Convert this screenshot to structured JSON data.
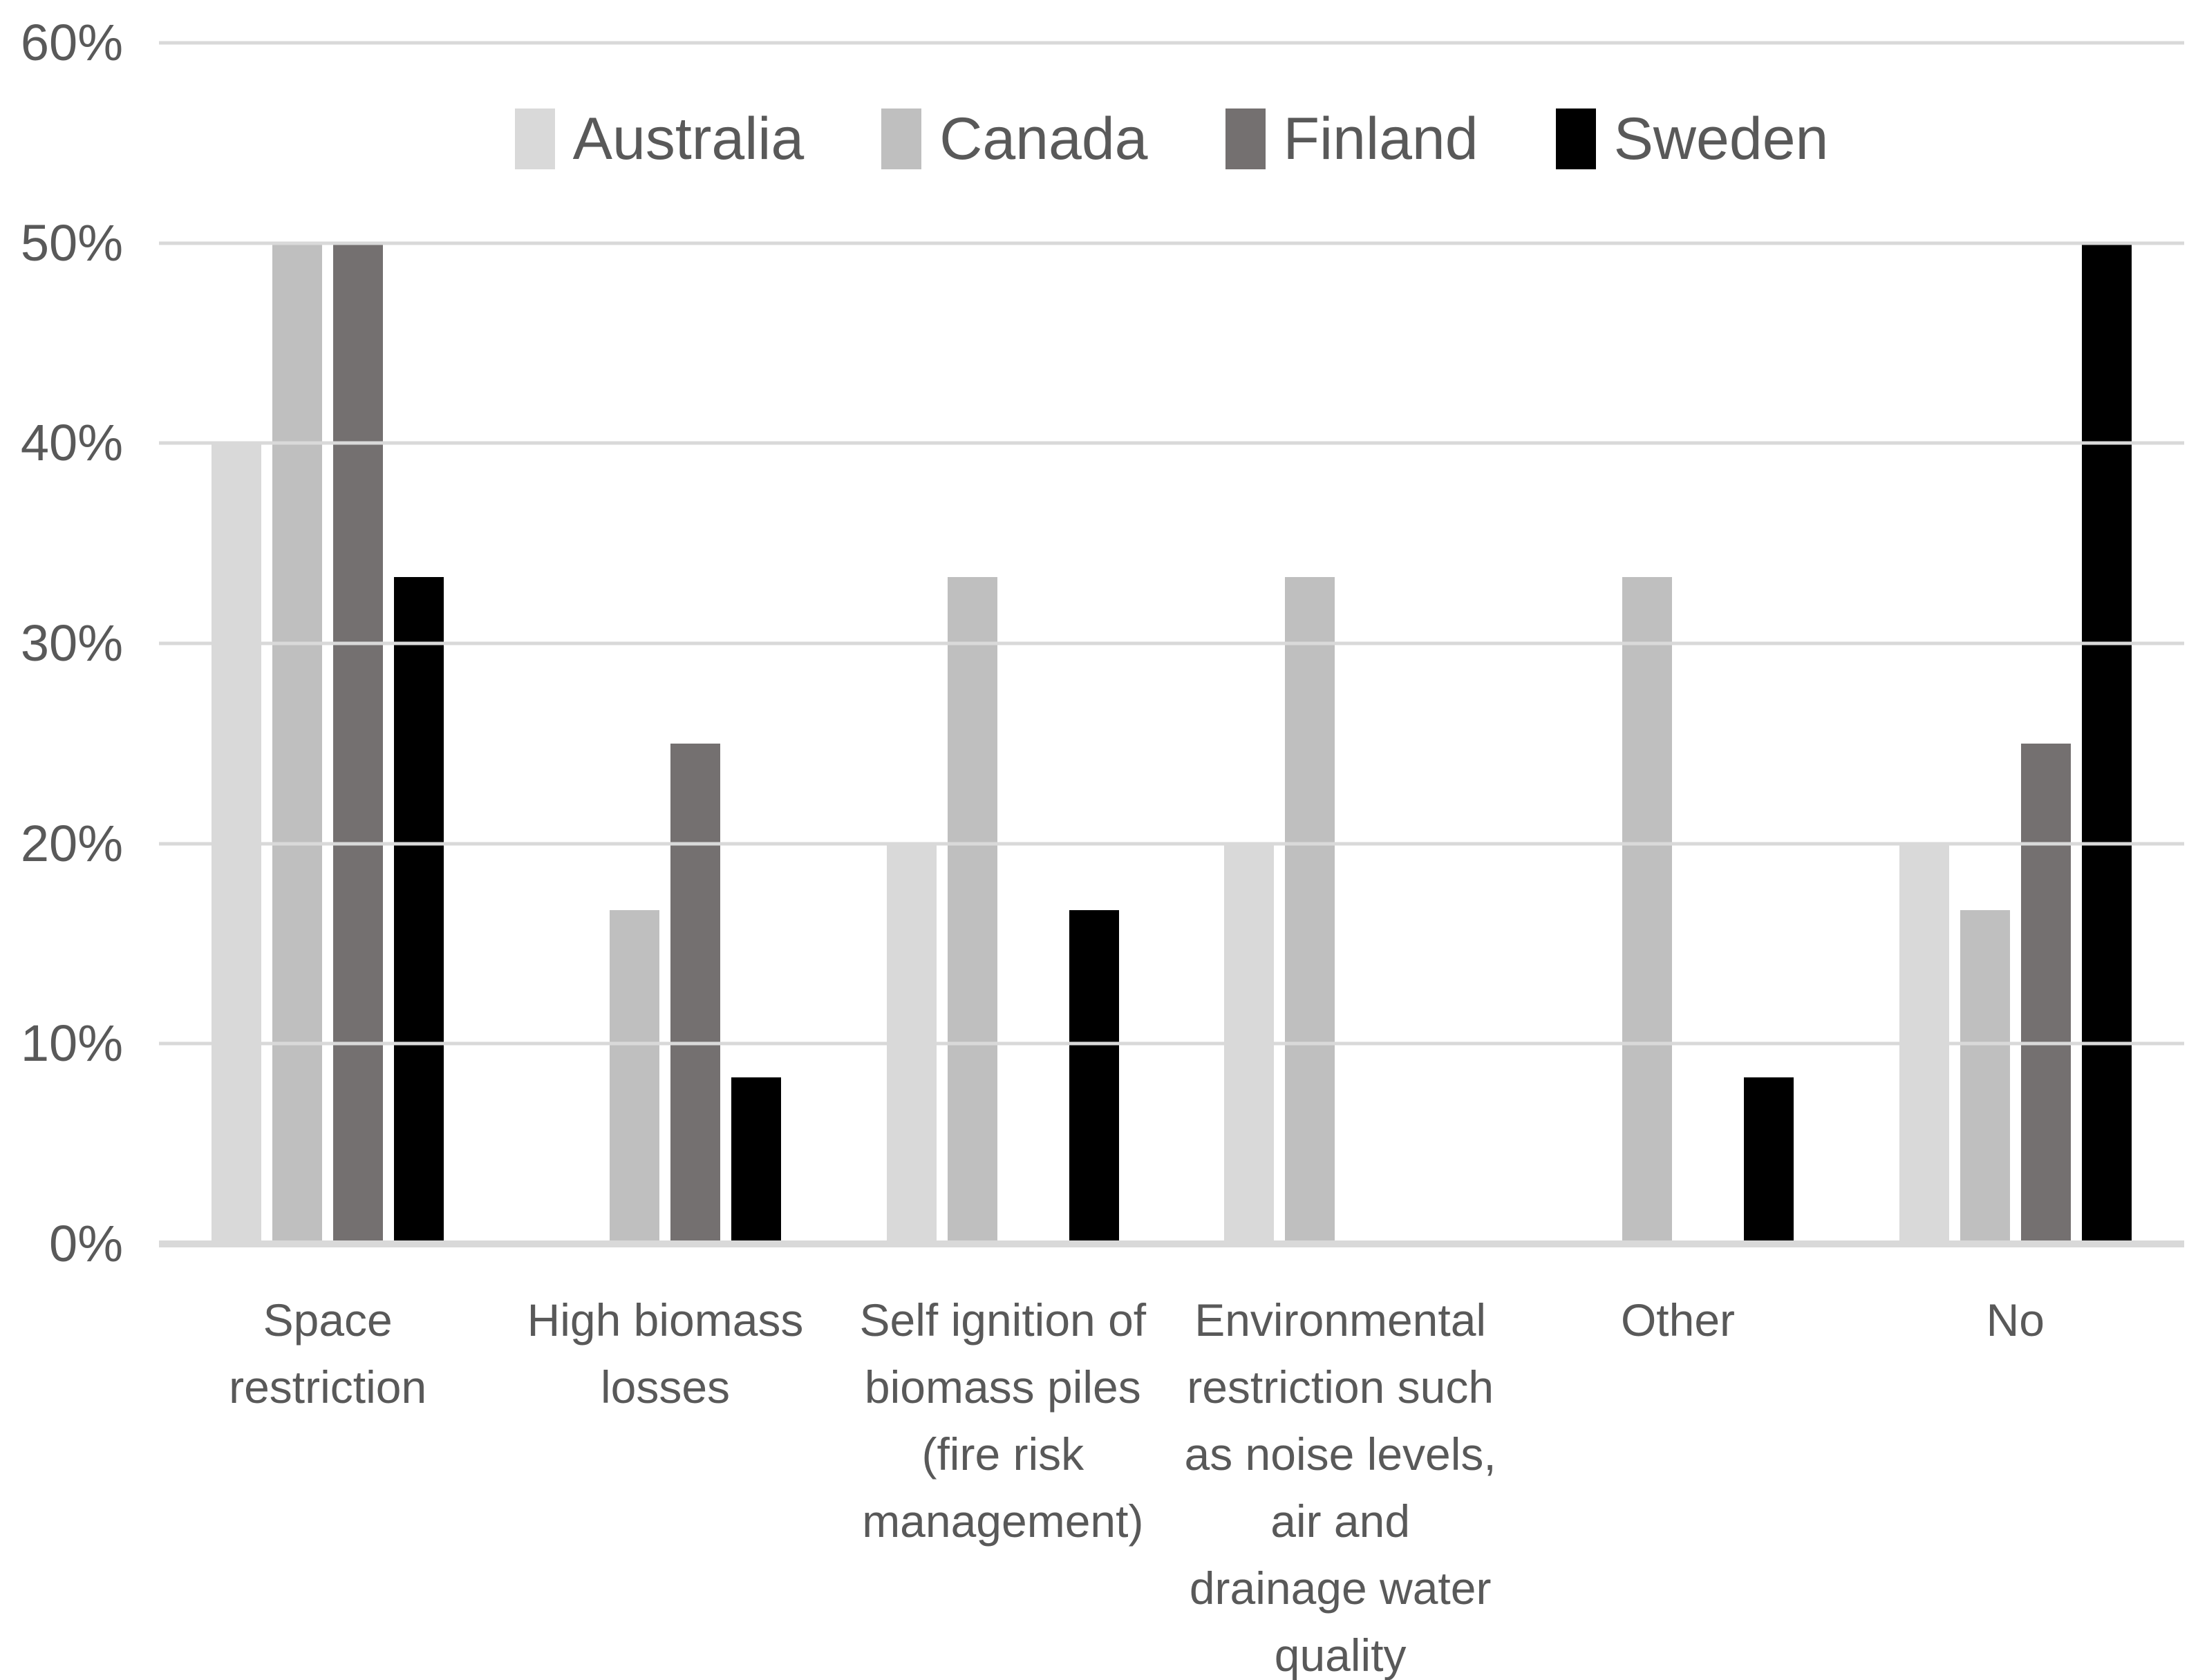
{
  "chart_data": {
    "type": "bar",
    "title": "",
    "categories": [
      "Space\nrestriction",
      "High biomass\nlosses",
      "Self ignition of\nbiomass piles\n(fire risk\nmanagement)",
      "Environmental\nrestriction such\nas noise levels,\nair and\ndrainage water\nquality",
      "Other",
      "No"
    ],
    "series": [
      {
        "name": "Australia",
        "color": "#d9d9d9",
        "values": [
          40,
          0,
          20,
          20,
          0,
          20
        ]
      },
      {
        "name": "Canada",
        "color": "#bfbfbf",
        "values": [
          50,
          16.67,
          33.33,
          33.33,
          33.33,
          16.67
        ]
      },
      {
        "name": "Finland",
        "color": "#747070",
        "values": [
          50,
          25,
          0,
          0,
          0,
          25
        ]
      },
      {
        "name": "Sweden",
        "color": "#000000",
        "values": [
          33.33,
          8.33,
          16.67,
          0,
          8.33,
          50
        ]
      }
    ],
    "y_axis": {
      "tick_labels": [
        "60%",
        "50%",
        "40%",
        "30%",
        "20%",
        "10%",
        "0%"
      ],
      "tick_values": [
        60,
        50,
        40,
        30,
        20,
        10,
        0
      ],
      "min": 0,
      "max": 60,
      "unit": "%"
    },
    "grid": true,
    "legend_position": "top",
    "colors": {
      "grid": "#d9d9d9",
      "axis_line": "#d9d9d9",
      "axis_text": "#595959"
    }
  }
}
